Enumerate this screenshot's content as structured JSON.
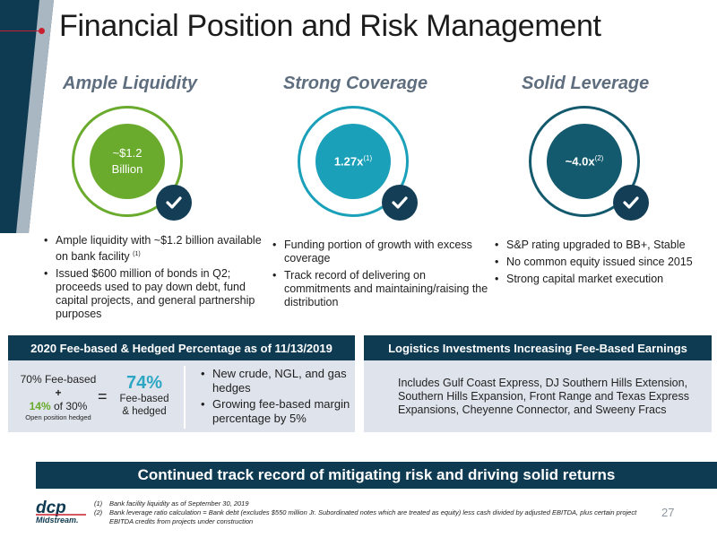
{
  "title": "Financial Position and Risk Management",
  "columns": [
    {
      "heading": "Ample Liquidity",
      "circle_text": [
        "~$1.2",
        "Billion"
      ],
      "bullets": [
        "Ample liquidity with ~$1.2 billion available on bank facility",
        "Issued $600 million of bonds in Q2; proceeds used to pay down debt, fund capital projects, and general partnership purposes"
      ],
      "bullet1_sup": "(1)"
    },
    {
      "heading": "Strong Coverage",
      "circle_value": "1.27x",
      "circle_sup": "(1)",
      "bullets": [
        "Funding portion of growth with excess coverage",
        "Track record of delivering on commitments and maintaining/raising the distribution"
      ]
    },
    {
      "heading": "Solid Leverage",
      "circle_value": "~4.0x",
      "circle_sup": "(2)",
      "bullets": [
        "S&P rating upgraded to BB+, Stable",
        "No common equity issued since 2015",
        "Strong capital market execution"
      ]
    }
  ],
  "fee_box": {
    "header": "2020 Fee-based & Hedged Percentage as of 11/13/2019",
    "fee_based_line": "70% Fee-based",
    "plus": "+",
    "hedged_pct": "14%",
    "hedged_rest": " of 30%",
    "open_position": "Open position hedged",
    "equals": "=",
    "total_pct": "74%",
    "total_label": [
      "Fee-based",
      "& hedged"
    ],
    "bullets": [
      "New crude, NGL, and gas hedges",
      "Growing fee-based margin percentage by 5%"
    ]
  },
  "logistics_box": {
    "header": "Logistics Investments Increasing Fee-Based Earnings",
    "body": "Includes Gulf Coast Express, DJ Southern Hills Extension, Southern Hills Expansion, Front Range and Texas Express Expansions, Cheyenne Connector, and Sweeny Fracs"
  },
  "bottom_banner": "Continued track record of mitigating risk and driving solid returns",
  "footnotes": [
    {
      "num": "(1)",
      "text": "Bank facility liquidity as of September 30, 2019"
    },
    {
      "num": "(2)",
      "text": "Bank leverage ratio calculation = Bank debt (excludes $550 million Jr. Subordinated notes which are treated as equity) less cash divided by adjusted EBITDA, plus certain project EBITDA credits from projects under construction"
    }
  ],
  "page_number": "27",
  "logo": {
    "text_top": "dcp",
    "text_bottom": "Midstream."
  },
  "colors": {
    "navy": "#0e3a52",
    "green": "#6aab2e",
    "teal": "#1ba0b9",
    "dark_teal": "#145a6e",
    "accent_red": "#c8202f",
    "heading_gray": "#5f6e7f",
    "panel_bg": "#dfe4ec",
    "highlight_green": "#67a928",
    "highlight_teal": "#2ba7c4"
  },
  "icons": [
    "checkmark-icon",
    "dcp-logo"
  ]
}
